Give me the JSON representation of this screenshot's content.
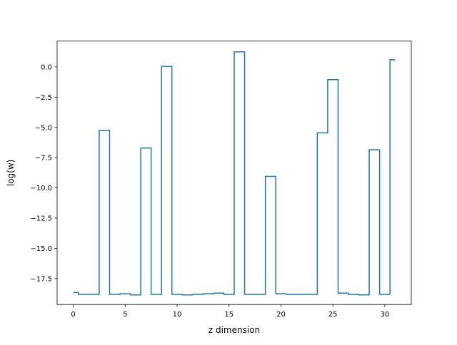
{
  "chart_data": {
    "type": "line",
    "drawstyle": "steps-mid",
    "title": "",
    "xlabel": "z dimension",
    "ylabel": "log(w)",
    "xlim": [
      -1.55,
      32.55
    ],
    "ylim": [
      -19.64,
      2.14
    ],
    "xticks": [
      0,
      5,
      10,
      15,
      20,
      25,
      30
    ],
    "xtick_labels": [
      "0",
      "5",
      "10",
      "15",
      "20",
      "25",
      "30"
    ],
    "yticks": [
      0.0,
      -2.5,
      -5.0,
      -7.5,
      -10.0,
      -12.5,
      -15.0,
      -17.5
    ],
    "ytick_labels": [
      "0.0",
      "−2.5",
      "−5.0",
      "−7.5",
      "−10.0",
      "−12.5",
      "−15.0",
      "−17.5"
    ],
    "grid": false,
    "color": "#1f77b4",
    "x": [
      0,
      1,
      2,
      3,
      4,
      5,
      6,
      7,
      8,
      9,
      10,
      11,
      12,
      13,
      14,
      15,
      16,
      17,
      18,
      19,
      20,
      21,
      22,
      23,
      24,
      25,
      26,
      27,
      28,
      29,
      30,
      31
    ],
    "y": [
      -18.65,
      -18.8,
      -18.8,
      -5.25,
      -18.8,
      -18.75,
      -18.85,
      -6.7,
      -18.8,
      0.05,
      -18.8,
      -18.85,
      -18.8,
      -18.75,
      -18.7,
      -18.8,
      1.25,
      -18.8,
      -18.8,
      -9.05,
      -18.75,
      -18.8,
      -18.8,
      -18.8,
      -5.45,
      -1.05,
      -18.7,
      -18.8,
      -18.85,
      -6.85,
      -18.8,
      0.6
    ]
  }
}
